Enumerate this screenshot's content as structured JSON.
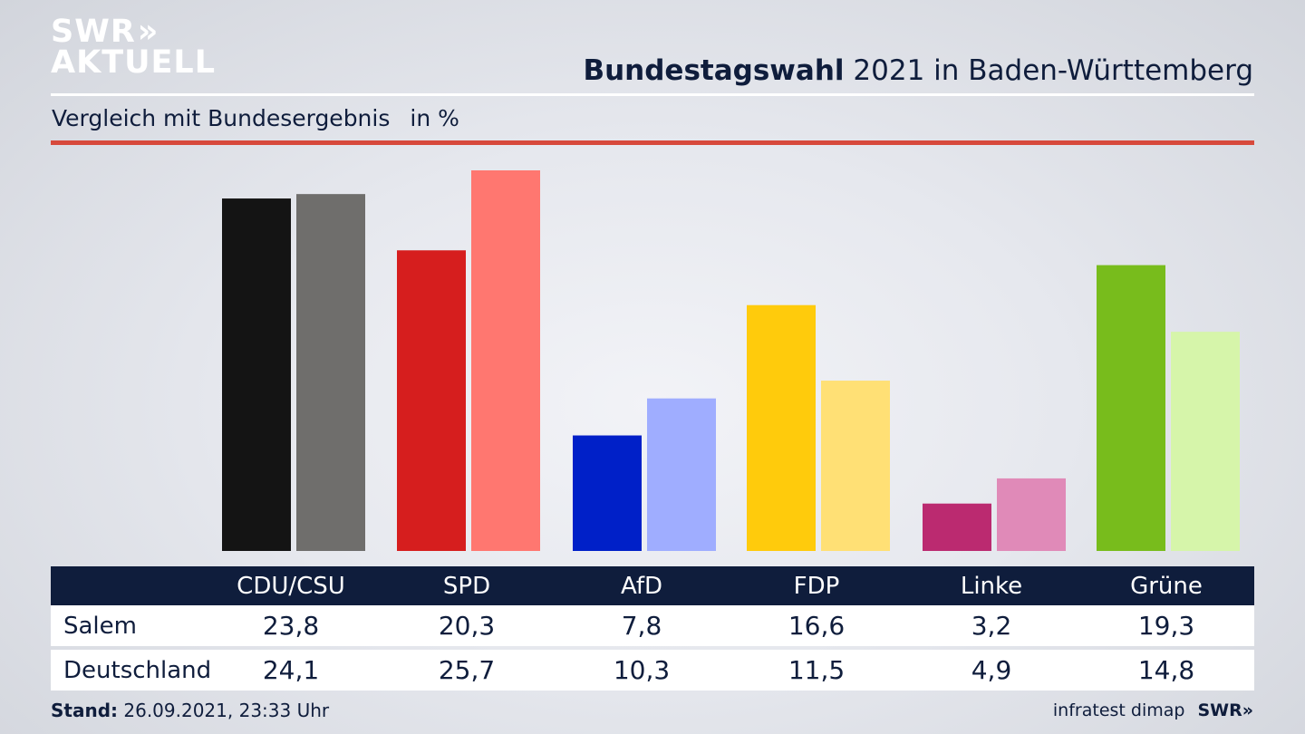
{
  "brand": {
    "logo_line1": "SWR",
    "logo_arrows": "»",
    "logo_line2": "AKTUELL"
  },
  "header": {
    "title_bold": "Bundestagswahl",
    "title_rest": " 2021 in Baden-Württemberg",
    "subtitle": "Vergleich mit Bundesergebnis",
    "unit": "in %"
  },
  "colors": {
    "rule_red": "#d7493c",
    "table_header_bg": "#0f1d3c",
    "text": "#0f1d3c"
  },
  "chart_data": {
    "type": "bar",
    "categories": [
      "CDU/CSU",
      "SPD",
      "AfD",
      "FDP",
      "Linke",
      "Grüne"
    ],
    "series": [
      {
        "name": "Salem",
        "values": [
          23.8,
          20.3,
          7.8,
          16.6,
          3.2,
          19.3
        ],
        "colors": [
          "#141414",
          "#d61e1e",
          "#0020c8",
          "#ffcb0c",
          "#bb2a70",
          "#78bc1c"
        ]
      },
      {
        "name": "Deutschland",
        "values": [
          24.1,
          25.7,
          10.3,
          11.5,
          4.9,
          14.8
        ],
        "colors": [
          "#6f6e6c",
          "#ff7770",
          "#9fadff",
          "#ffe075",
          "#e08ab8",
          "#d6f5aa"
        ]
      }
    ],
    "ylim": [
      0,
      25.7
    ],
    "grid": false,
    "legend": "table-below"
  },
  "table": {
    "headers": [
      "CDU/CSU",
      "SPD",
      "AfD",
      "FDP",
      "Linke",
      "Grüne"
    ],
    "rows": [
      {
        "label": "Salem",
        "values": [
          "23,8",
          "20,3",
          "7,8",
          "16,6",
          "3,2",
          "19,3"
        ]
      },
      {
        "label": "Deutschland",
        "values": [
          "24,1",
          "25,7",
          "10,3",
          "11,5",
          "4,9",
          "14,8"
        ]
      }
    ]
  },
  "footer": {
    "stand_label": "Stand:",
    "stand_value": " 26.09.2021, 23:33 Uhr",
    "source": "infratest dimap",
    "brand_small": "SWR»"
  }
}
